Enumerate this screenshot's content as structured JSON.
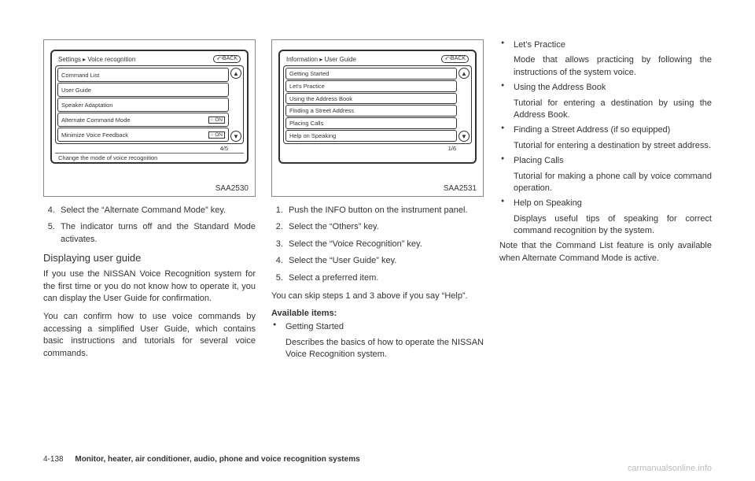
{
  "col1": {
    "screen": {
      "breadcrumb": "Settings ▸ Voice recognition",
      "back": "⤺BACK",
      "items": [
        {
          "label": "Command List",
          "toggle": ""
        },
        {
          "label": "User Guide",
          "toggle": ""
        },
        {
          "label": "Speaker Adaptation",
          "toggle": ""
        },
        {
          "label": "Alternate Command Mode",
          "toggle": "○ ON"
        },
        {
          "label": "Minimize Voice Feedback",
          "toggle": "○ ON"
        }
      ],
      "page": "4/5",
      "status": "Change the mode of voice recognition",
      "caption": "SAA2530"
    },
    "steps_start": 4,
    "steps": [
      "Select the “Alternate Command Mode” key.",
      "The indicator turns off and the Standard Mode activates."
    ],
    "heading": "Displaying user guide",
    "para1": "If you use the NISSAN Voice Recognition system for the first time or you do not know how to operate it, you can display the User Guide for confirmation.",
    "para2": "You can confirm how to use voice commands by accessing a simplified User Guide, which contains basic instructions and tutorials for several voice commands."
  },
  "col2": {
    "screen": {
      "breadcrumb": "Information ▸ User Guide",
      "back": "⤺BACK",
      "items": [
        {
          "label": "Getting Started",
          "toggle": ""
        },
        {
          "label": "Let's Practice",
          "toggle": ""
        },
        {
          "label": "Using the Address Book",
          "toggle": ""
        },
        {
          "label": "Finding a Street Address",
          "toggle": ""
        },
        {
          "label": "Placing Calls",
          "toggle": ""
        },
        {
          "label": "Help on Speaking",
          "toggle": ""
        }
      ],
      "page": "1/6",
      "status": "",
      "caption": "SAA2531"
    },
    "steps": [
      "Push the INFO button on the instrument panel.",
      "Select the “Others” key.",
      "Select the “Voice Recognition” key.",
      "Select the “User Guide” key.",
      "Select a preferred item."
    ],
    "skip_note": "You can skip steps 1 and 3 above if you say “Help”.",
    "avail_heading": "Available items:",
    "avail_item_label": "Getting Started",
    "avail_item_desc": "Describes the basics of how to operate the NISSAN Voice Recognition system."
  },
  "col3": {
    "items": [
      {
        "label": "Let’s Practice",
        "desc": "Mode that allows practicing by following the instructions of the system voice."
      },
      {
        "label": "Using the Address Book",
        "desc": "Tutorial for entering a destination by using the Address Book."
      },
      {
        "label": "Finding a Street Address (if so equipped)",
        "desc": "Tutorial for entering a destination by street address."
      },
      {
        "label": "Placing Calls",
        "desc": "Tutorial for making a phone call by voice command operation."
      },
      {
        "label": "Help on Speaking",
        "desc": "Displays useful tips of speaking for correct command recognition by the system."
      }
    ],
    "note": "Note that the Command List feature is only available when Alternate Command Mode is active."
  },
  "footer": {
    "page": "4-138",
    "section": "Monitor, heater, air conditioner, audio, phone and voice recognition systems"
  },
  "watermark": "carmanualsonline.info"
}
